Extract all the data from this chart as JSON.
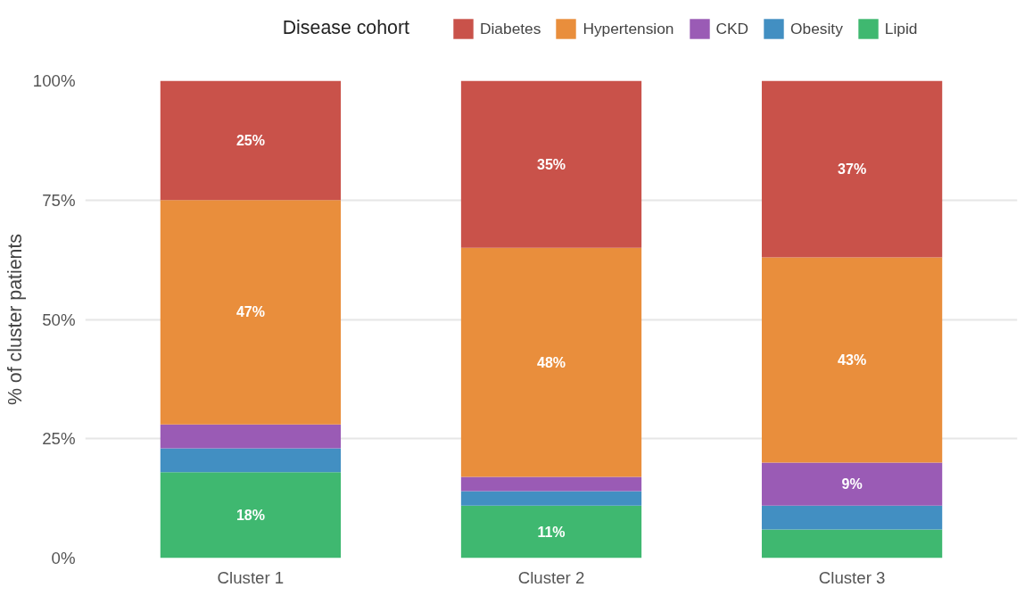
{
  "chart_data": {
    "type": "bar",
    "stacked": true,
    "legend_title": "Disease cohort",
    "ylabel": "% of cluster patients",
    "categories": [
      "Cluster 1",
      "Cluster 2",
      "Cluster 3"
    ],
    "series": [
      {
        "name": "Lipid",
        "color": "#3fb870",
        "values": [
          18,
          11,
          6
        ],
        "value_labels": [
          "18%",
          "11%",
          null
        ]
      },
      {
        "name": "Obesity",
        "color": "#428fc2",
        "values": [
          5,
          3,
          5
        ],
        "value_labels": [
          null,
          null,
          null
        ]
      },
      {
        "name": "CKD",
        "color": "#9a5bb5",
        "values": [
          5,
          3,
          9
        ],
        "value_labels": [
          null,
          null,
          "9%"
        ]
      },
      {
        "name": "Hypertension",
        "color": "#e98e3c",
        "values": [
          47,
          48,
          43
        ],
        "value_labels": [
          "47%",
          "48%",
          "43%"
        ]
      },
      {
        "name": "Diabetes",
        "color": "#c9524a",
        "values": [
          25,
          35,
          37
        ],
        "value_labels": [
          "25%",
          "35%",
          "37%"
        ]
      }
    ],
    "ylim": [
      0,
      100
    ],
    "yticks": [
      {
        "value": 0,
        "label": "0%"
      },
      {
        "value": 25,
        "label": "25%"
      },
      {
        "value": 50,
        "label": "50%"
      },
      {
        "value": 75,
        "label": "75%"
      },
      {
        "value": 100,
        "label": "100%"
      }
    ],
    "grid": "y",
    "legend": "top"
  }
}
